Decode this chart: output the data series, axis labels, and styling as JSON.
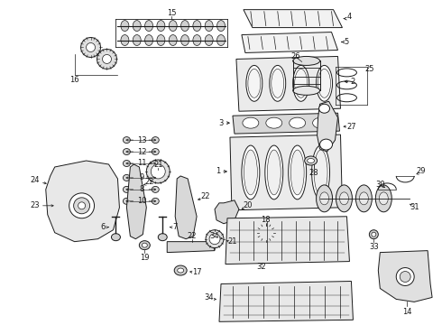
{
  "background_color": "#ffffff",
  "line_color": "#1a1a1a",
  "fig_width": 4.9,
  "fig_height": 3.6,
  "dpi": 100,
  "label_fontsize": 6.0,
  "lw": 0.7
}
